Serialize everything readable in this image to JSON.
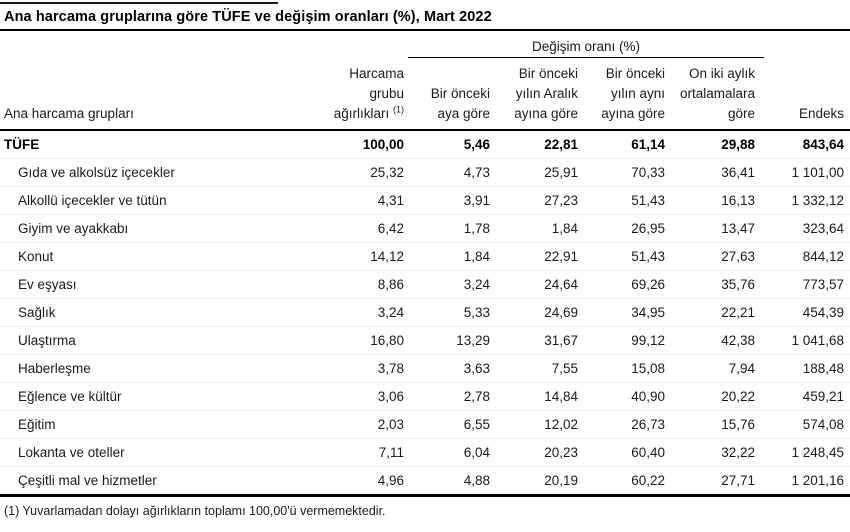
{
  "title": "Ana harcama gruplarına göre TÜFE ve değişim oranları (%), Mart 2022",
  "table": {
    "group_header": "Değişim oranı (%)",
    "header": {
      "group": "Ana harcama grupları",
      "weight": [
        "Harcama",
        "grubu"
      ],
      "weight_base": "ağırlıkları",
      "weight_sup": "(1)",
      "monthly": [
        "Bir önceki",
        "aya göre"
      ],
      "december": [
        "Bir önceki",
        "yılın Aralık",
        "ayına göre"
      ],
      "yearly": [
        "Bir önceki",
        "yılın aynı",
        "ayına göre"
      ],
      "avg12": [
        "On iki aylık",
        "ortalamalara",
        "göre"
      ],
      "index": "Endeks"
    },
    "rows": [
      {
        "label": "TÜFE",
        "bold": true,
        "indent": false,
        "weight": "100,00",
        "monthly": "5,46",
        "december": "22,81",
        "yearly": "61,14",
        "avg12": "29,88",
        "index": "843,64"
      },
      {
        "label": "Gıda ve alkolsüz içecekler",
        "bold": false,
        "indent": true,
        "weight": "25,32",
        "monthly": "4,73",
        "december": "25,91",
        "yearly": "70,33",
        "avg12": "36,41",
        "index": "1 101,00"
      },
      {
        "label": "Alkollü içecekler ve tütün",
        "bold": false,
        "indent": true,
        "weight": "4,31",
        "monthly": "3,91",
        "december": "27,23",
        "yearly": "51,43",
        "avg12": "16,13",
        "index": "1 332,12"
      },
      {
        "label": "Giyim ve ayakkabı",
        "bold": false,
        "indent": true,
        "weight": "6,42",
        "monthly": "1,78",
        "december": "1,84",
        "yearly": "26,95",
        "avg12": "13,47",
        "index": "323,64"
      },
      {
        "label": "Konut",
        "bold": false,
        "indent": true,
        "weight": "14,12",
        "monthly": "1,84",
        "december": "22,91",
        "yearly": "51,43",
        "avg12": "27,63",
        "index": "844,12"
      },
      {
        "label": "Ev eşyası",
        "bold": false,
        "indent": true,
        "weight": "8,86",
        "monthly": "3,24",
        "december": "24,64",
        "yearly": "69,26",
        "avg12": "35,76",
        "index": "773,57"
      },
      {
        "label": "Sağlık",
        "bold": false,
        "indent": true,
        "weight": "3,24",
        "monthly": "5,33",
        "december": "24,69",
        "yearly": "34,95",
        "avg12": "22,21",
        "index": "454,39"
      },
      {
        "label": "Ulaştırma",
        "bold": false,
        "indent": true,
        "weight": "16,80",
        "monthly": "13,29",
        "december": "31,67",
        "yearly": "99,12",
        "avg12": "42,38",
        "index": "1 041,68"
      },
      {
        "label": "Haberleşme",
        "bold": false,
        "indent": true,
        "weight": "3,78",
        "monthly": "3,63",
        "december": "7,55",
        "yearly": "15,08",
        "avg12": "7,94",
        "index": "188,48"
      },
      {
        "label": "Eğlence ve kültür",
        "bold": false,
        "indent": true,
        "weight": "3,06",
        "monthly": "2,78",
        "december": "14,84",
        "yearly": "40,90",
        "avg12": "20,22",
        "index": "459,21"
      },
      {
        "label": "Eğitim",
        "bold": false,
        "indent": true,
        "weight": "2,03",
        "monthly": "6,55",
        "december": "12,02",
        "yearly": "26,73",
        "avg12": "15,76",
        "index": "574,08"
      },
      {
        "label": "Lokanta ve oteller",
        "bold": false,
        "indent": true,
        "weight": "7,11",
        "monthly": "6,04",
        "december": "20,23",
        "yearly": "60,40",
        "avg12": "32,22",
        "index": "1 248,45"
      },
      {
        "label": "Çeşitli mal ve hizmetler",
        "bold": false,
        "indent": true,
        "weight": "4,96",
        "monthly": "4,88",
        "december": "20,19",
        "yearly": "60,22",
        "avg12": "27,71",
        "index": "1 201,16"
      }
    ]
  },
  "footnote": "(1) Yuvarlamadan dolayı ağırlıkların toplamı 100,00'ü vermemektedir."
}
